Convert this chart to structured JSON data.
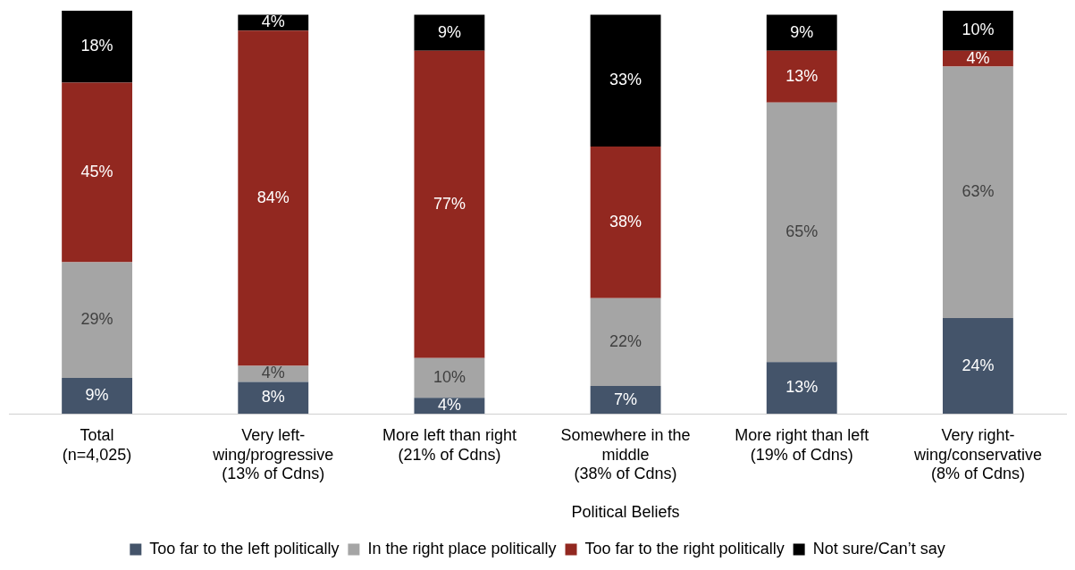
{
  "chart_data": {
    "type": "bar",
    "stacked": true,
    "legend": "bottom",
    "categories": [
      "Total (n=4,025)",
      "Very left-wing/progressive (13% of Cdns)",
      "More left than right (21% of Cdns)",
      "Somewhere in the middle (38% of Cdns)",
      "More right than left (19% of Cdns)",
      "Very right-wing/conservative (8% of Cdns)"
    ],
    "annotations": [
      "Political Beliefs"
    ],
    "series": [
      {
        "name": "Too far to the left politically",
        "color": "#44546a",
        "values": [
          9,
          8,
          4,
          7,
          13,
          24
        ],
        "value_labels": [
          "9%",
          "8%",
          "4%",
          "7%",
          "13%",
          "24%"
        ]
      },
      {
        "name": "In the right place politically",
        "color": "#a5a5a5",
        "values": [
          29,
          4,
          10,
          22,
          65,
          63
        ],
        "value_labels": [
          "29%",
          "4%",
          "10%",
          "22%",
          "65%",
          "63%"
        ]
      },
      {
        "name": "Too far to the right politically",
        "color": "#922820",
        "values": [
          45,
          84,
          77,
          38,
          13,
          4
        ],
        "value_labels": [
          "45%",
          "84%",
          "77%",
          "38%",
          "13%",
          "4%"
        ]
      },
      {
        "name": "Not sure/Can’t say",
        "color": "#000000",
        "values": [
          18,
          4,
          9,
          33,
          9,
          10
        ],
        "value_labels": [
          "18%",
          "4%",
          "9%",
          "33%",
          "9%",
          "10%"
        ]
      }
    ]
  }
}
